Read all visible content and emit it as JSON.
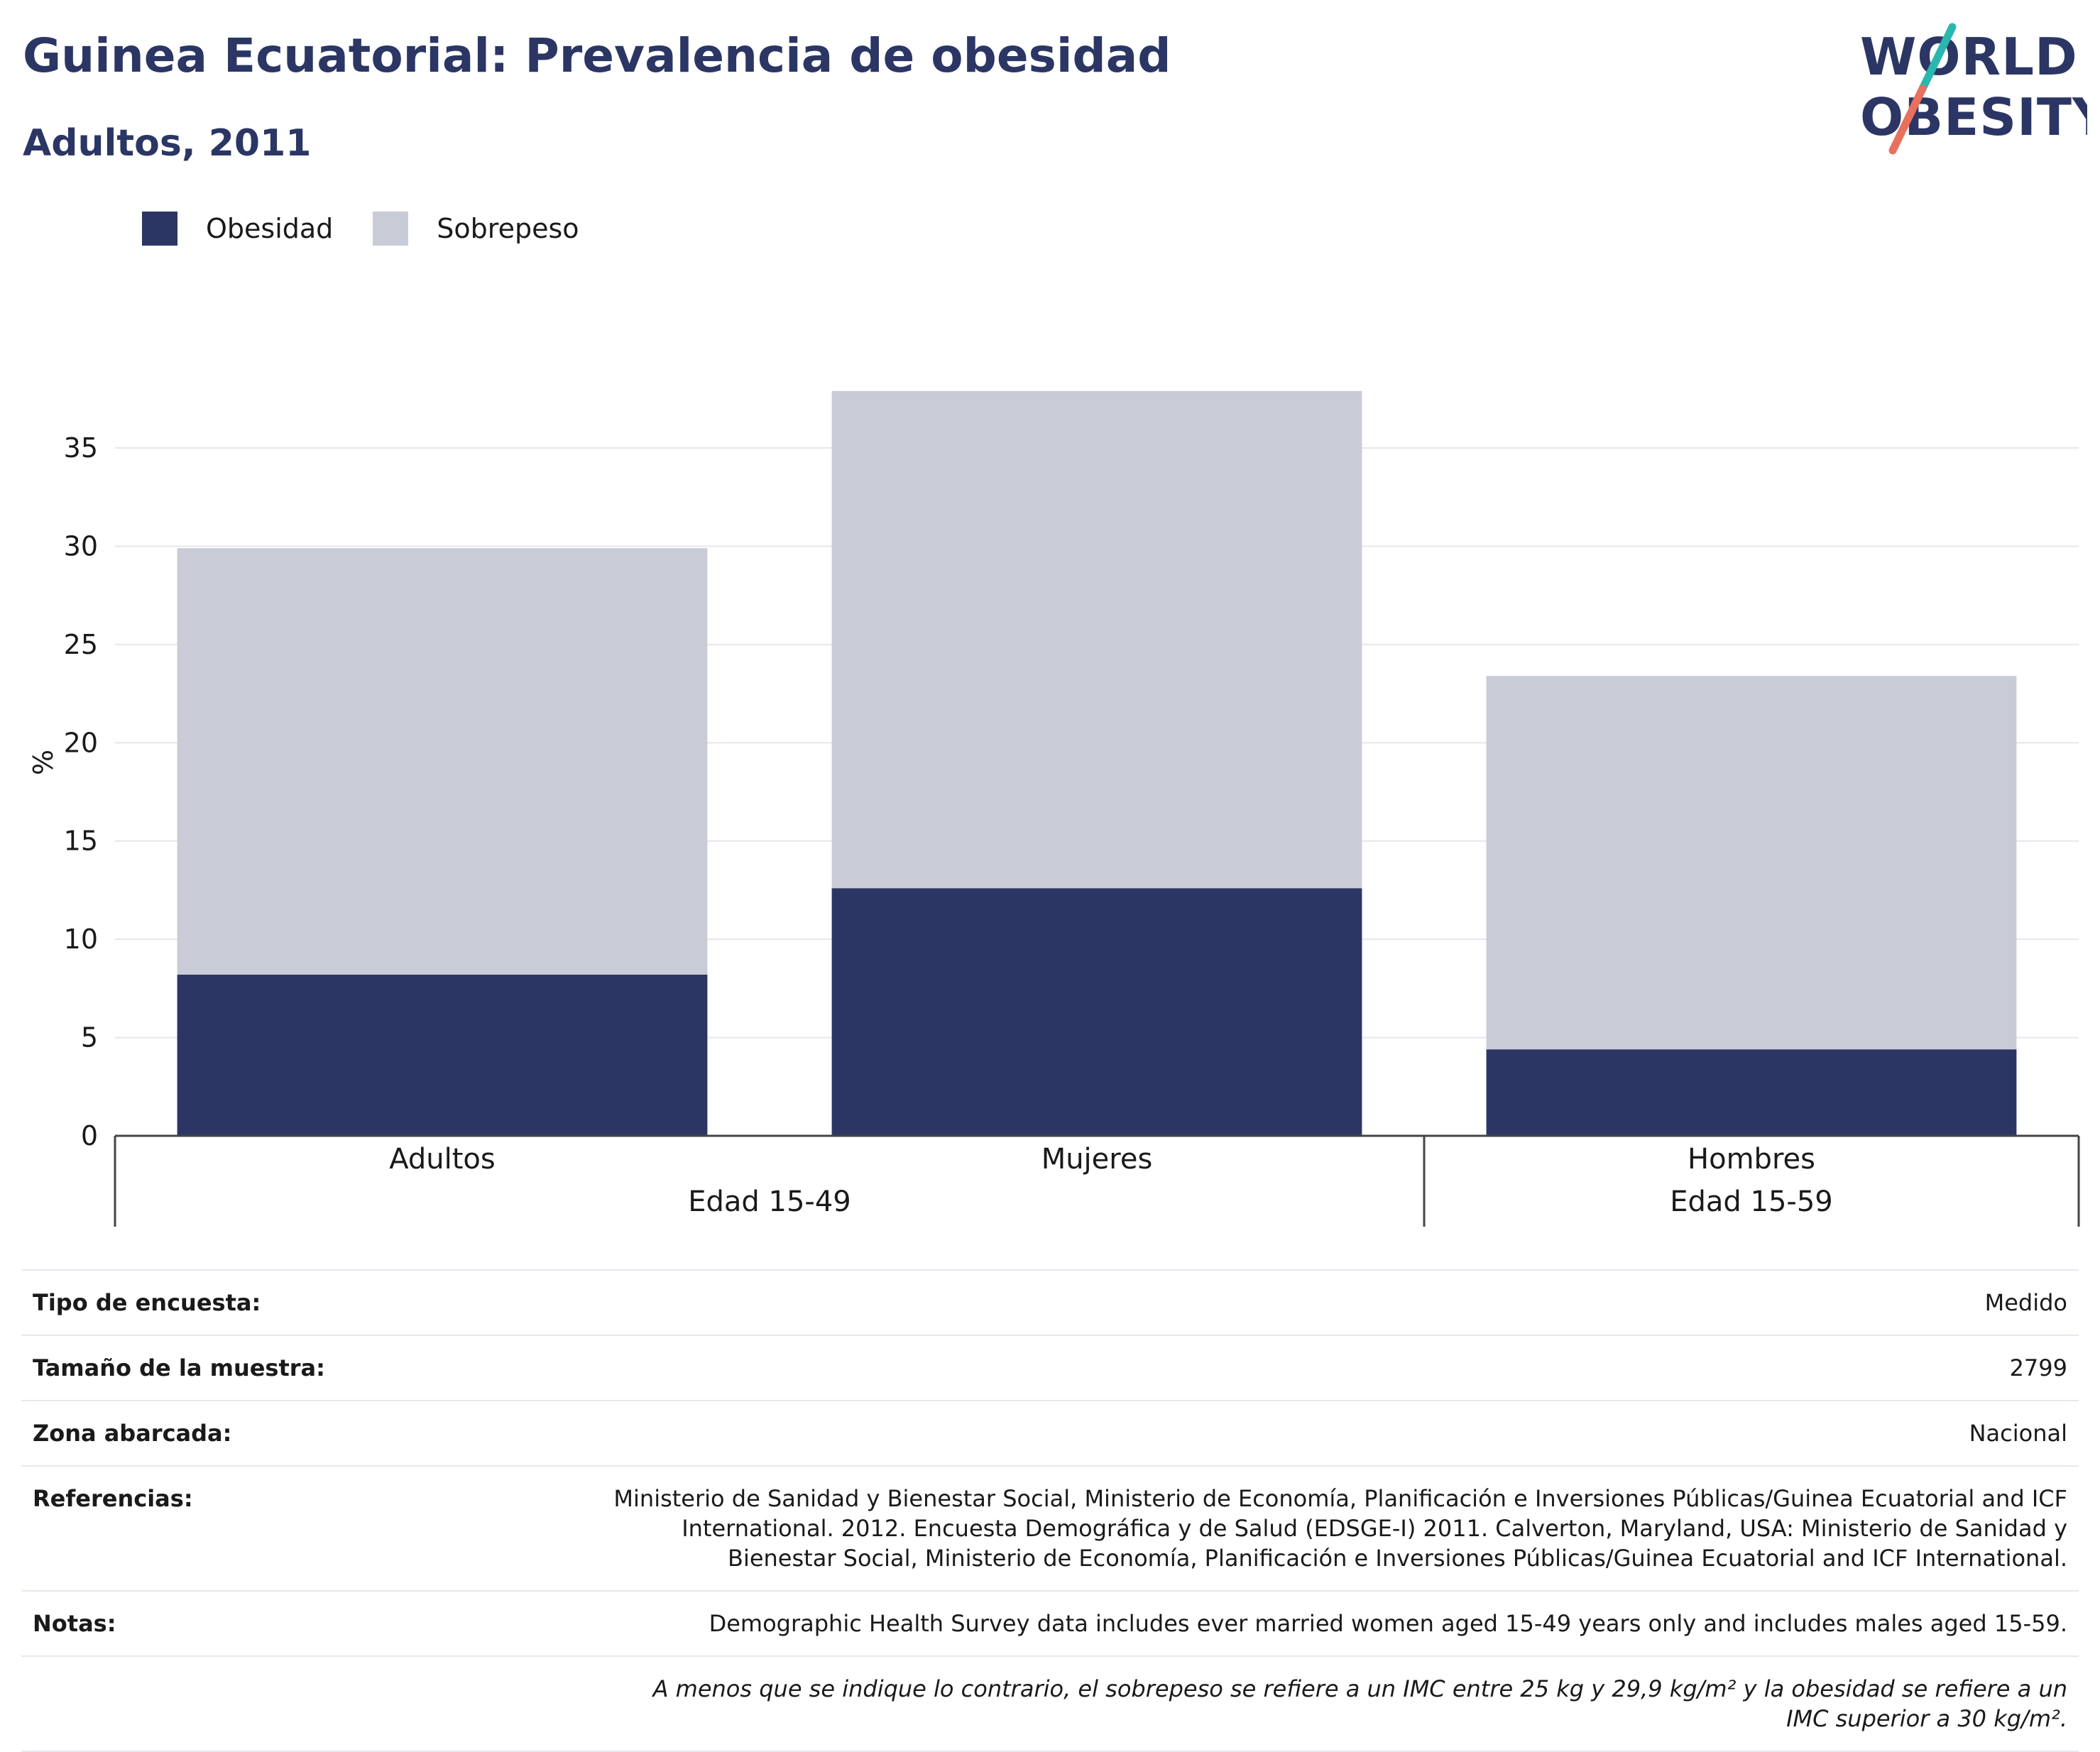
{
  "header": {
    "title": "Guinea Ecuatorial: Prevalencia de obesidad",
    "subtitle": "Adultos, 2011"
  },
  "logo": {
    "line1": "WORLD",
    "line2": "OBESITY",
    "accent_teal": "#2ab7b0",
    "accent_coral": "#e8705f"
  },
  "legend": {
    "items": [
      {
        "label": "Obesidad",
        "color": "#2b3664"
      },
      {
        "label": "Sobrepeso",
        "color": "#c9cbd7"
      }
    ]
  },
  "chart_data": {
    "type": "bar",
    "stacked": true,
    "categories": [
      "Adultos",
      "Mujeres",
      "Hombres"
    ],
    "groups": [
      {
        "label": "Edad 15-49",
        "categories": [
          "Adultos",
          "Mujeres"
        ]
      },
      {
        "label": "Edad 15-59",
        "categories": [
          "Hombres"
        ]
      }
    ],
    "series": [
      {
        "name": "Obesidad",
        "color": "#2b3664",
        "values": [
          8.2,
          12.6,
          4.4
        ]
      },
      {
        "name": "Sobrepeso",
        "color": "#c9cbd7",
        "values": [
          21.7,
          25.3,
          19.0
        ]
      }
    ],
    "ylabel": "%",
    "ylim": [
      0,
      38
    ],
    "yticks": [
      0,
      5,
      10,
      15,
      20,
      25,
      30,
      35
    ],
    "grid": true,
    "legend_position": "top-left"
  },
  "info": {
    "rows": [
      {
        "key": "Tipo de encuesta:",
        "value": "Medido"
      },
      {
        "key": "Tamaño de la muestra:",
        "value": "2799"
      },
      {
        "key": "Zona abarcada:",
        "value": "Nacional"
      },
      {
        "key": "Referencias:",
        "value": "Ministerio de Sanidad y Bienestar Social, Ministerio de Economía, Planificación e Inversiones Públicas/Guinea Ecuatorial and ICF International. 2012. Encuesta Demográfica y de Salud (EDSGE-I) 2011. Calverton, Maryland, USA: Ministerio de Sanidad y Bienestar Social, Ministerio de Economía, Planificación e Inversiones Públicas/Guinea Ecuatorial and ICF International."
      },
      {
        "key": "Notas:",
        "value": "Demographic Health Survey data includes ever married women aged 15-49 years only and includes males aged 15-59."
      }
    ],
    "footnote": "A menos que se indique lo contrario, el sobrepeso se refiere a un IMC entre 25 kg y 29,9 kg/m² y la obesidad se refiere a un IMC superior a 30 kg/m²."
  }
}
